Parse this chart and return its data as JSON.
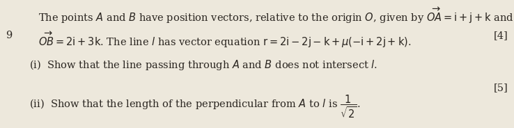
{
  "background_color": "#ede8dc",
  "question_number": "9",
  "top_partial": "The points $A$ and $B$ have position vectors, relative to the origin $O$, given by $\\overrightarrow{OA} = \\mathrm{i} + \\mathrm{j} + \\mathrm{k}$ and",
  "line2": "$\\overrightarrow{OB} = 2\\mathrm{i} + 3\\mathrm{k}$. The line $l$ has vector equation $\\mathrm{r} = 2\\mathrm{i} - 2\\mathrm{j} - \\mathrm{k} + \\mu(-\\mathrm{i} + 2\\mathrm{j} + \\mathrm{k})$.",
  "mark1": "[4]",
  "part_i": "(i)  Show that the line passing through $A$ and $B$ does not intersect $l$.",
  "mark2": "[5]",
  "part_ii": "(ii)  Show that the length of the perpendicular from $A$ to $l$ is $\\dfrac{1}{\\sqrt{2}}$.",
  "font_size": 10.5,
  "text_color": "#2a2520"
}
